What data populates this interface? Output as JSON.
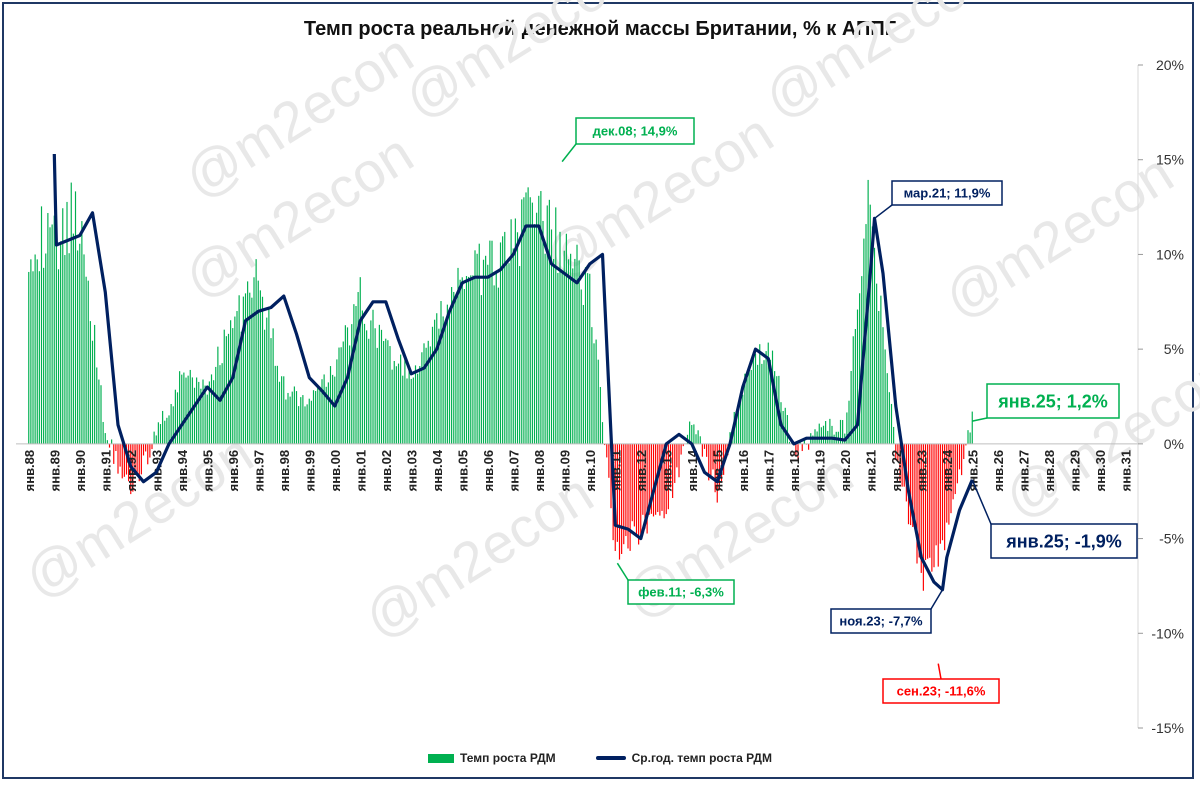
{
  "chart_data": {
    "type": "bar",
    "title": "Темп роста реальной денежной массы Британии, % к АППГ",
    "watermark": "@m2econ",
    "ylim": [
      -15,
      20
    ],
    "y_ticks": [
      "20%",
      "15%",
      "10%",
      "5%",
      "0%",
      "-5%",
      "-10%",
      "-15%"
    ],
    "x_ticks": [
      "янв.88",
      "янв.89",
      "янв.90",
      "янв.91",
      "янв.92",
      "янв.93",
      "янв.94",
      "янв.95",
      "янв.96",
      "янв.97",
      "янв.98",
      "янв.99",
      "янв.00",
      "янв.01",
      "янв.02",
      "янв.03",
      "янв.04",
      "янв.05",
      "янв.06",
      "янв.07",
      "янв.08",
      "янв.09",
      "янв.10",
      "янв.11",
      "янв.12",
      "янв.13",
      "янв.14",
      "янв.15",
      "янв.16",
      "янв.17",
      "янв.18",
      "янв.19",
      "янв.20",
      "янв.21",
      "янв.22",
      "янв.23",
      "янв.24",
      "янв.25",
      "янв.26",
      "янв.27",
      "янв.28",
      "янв.29",
      "янв.30",
      "янв.31"
    ],
    "colors": {
      "positive": "#00b050",
      "negative": "#ff0000",
      "line": "#002060"
    },
    "series": [
      {
        "name": "Темп роста РДМ",
        "kind": "bar",
        "x": [
          "янв.88",
          "янв.89",
          "янв.90",
          "янв.91",
          "янв.92",
          "янв.93",
          "янв.94",
          "янв.95",
          "янв.96",
          "янв.97",
          "янв.98",
          "янв.99",
          "янв.00",
          "янв.01",
          "янв.02",
          "янв.03",
          "янв.04",
          "янв.05",
          "янв.06",
          "янв.07",
          "янв.08",
          "янв.09",
          "янв.10",
          "янв.11",
          "янв.12",
          "янв.13",
          "янв.14",
          "янв.15",
          "янв.16",
          "янв.17",
          "янв.18",
          "янв.19",
          "янв.20",
          "янв.21",
          "янв.22",
          "янв.23",
          "янв.24",
          "янв.25"
        ],
        "values": [
          11.0,
          10.5,
          12.5,
          0.5,
          -2.5,
          0.5,
          3.5,
          3.0,
          6.5,
          8.5,
          3.0,
          2.0,
          4.0,
          7.5,
          5.0,
          3.5,
          6.0,
          9.0,
          9.0,
          11.0,
          12.0,
          10.0,
          8.5,
          -5.5,
          -4.5,
          -3.5,
          1.0,
          -2.5,
          3.0,
          5.5,
          -0.5,
          0.8,
          0.8,
          13.0,
          -0.5,
          -7.0,
          -5.0,
          1.2
        ]
      },
      {
        "name": "Ср.год. темп роста РДМ",
        "kind": "line",
        "x": [
          "янв.89",
          "фев.89",
          "янв.90",
          "июл.90",
          "янв.91",
          "июл.91",
          "янв.92",
          "июл.92",
          "янв.93",
          "июл.93",
          "янв.94",
          "июл.94",
          "янв.95",
          "июл.95",
          "янв.96",
          "июл.96",
          "янв.97",
          "июл.97",
          "янв.98",
          "июл.98",
          "янв.99",
          "июл.99",
          "янв.00",
          "июл.00",
          "янв.01",
          "июл.01",
          "янв.02",
          "июл.02",
          "янв.03",
          "июл.03",
          "янв.04",
          "июл.04",
          "янв.05",
          "июл.05",
          "янв.06",
          "июл.06",
          "янв.07",
          "июл.07",
          "янв.08",
          "июл.08",
          "янв.09",
          "июл.09",
          "янв.10",
          "июл.10",
          "янв.11",
          "июл.11",
          "янв.12",
          "июл.12",
          "янв.13",
          "июл.13",
          "янв.14",
          "июл.14",
          "янв.15",
          "июл.15",
          "янв.16",
          "июл.16",
          "янв.17",
          "июл.17",
          "янв.18",
          "июл.18",
          "янв.19",
          "июл.19",
          "янв.20",
          "июл.20",
          "янв.21",
          "мар.21",
          "июл.21",
          "янв.22",
          "июл.22",
          "янв.23",
          "июл.23",
          "ноя.23",
          "янв.24",
          "июл.24",
          "янв.25"
        ],
        "values": [
          15.3,
          10.5,
          11.0,
          12.2,
          8.0,
          1.0,
          -1.2,
          -2.0,
          -1.5,
          0.0,
          1.0,
          2.0,
          3.0,
          2.3,
          3.5,
          6.5,
          7.0,
          7.2,
          7.8,
          5.8,
          3.5,
          2.8,
          2.0,
          3.5,
          6.5,
          7.5,
          7.5,
          5.5,
          3.7,
          4.0,
          5.0,
          7.0,
          8.5,
          8.8,
          8.8,
          9.2,
          10.0,
          11.5,
          11.5,
          9.5,
          9.0,
          8.5,
          9.5,
          10.0,
          -4.3,
          -4.5,
          -5.0,
          -2.5,
          0.0,
          0.5,
          0.0,
          -1.5,
          -2.0,
          0.0,
          3.0,
          5.0,
          4.5,
          1.0,
          0.0,
          0.3,
          0.3,
          0.3,
          0.2,
          1.0,
          9.0,
          11.9,
          9.0,
          2.0,
          -2.5,
          -6.0,
          -7.3,
          -7.7,
          -6.0,
          -3.5,
          -1.9
        ]
      }
    ],
    "annotations": [
      {
        "text": "дек.08; 14,9%",
        "color": "#00b050"
      },
      {
        "text": "мар.21; 11,9%",
        "color": "#002060"
      },
      {
        "text": "янв.25; 1,2%",
        "color": "#00b050"
      },
      {
        "text": "янв.25; -1,9%",
        "color": "#002060"
      },
      {
        "text": "фев.11; -6,3%",
        "color": "#00b050"
      },
      {
        "text": "ноя.23; -7,7%",
        "color": "#002060"
      },
      {
        "text": "сен.23; -11,6%",
        "color": "#ff0000"
      }
    ],
    "legend_position": "bottom",
    "grid": false
  }
}
